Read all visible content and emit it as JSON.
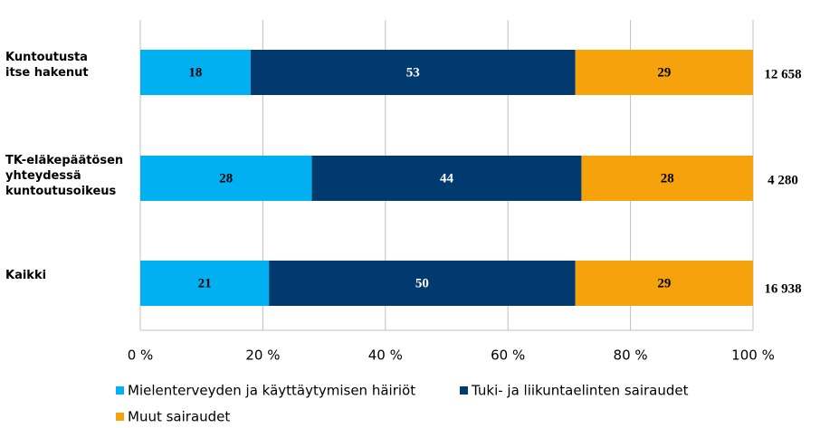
{
  "chart_data": {
    "type": "stacked_barh",
    "categories": [
      "Kuntoutusta\nitse hakenut",
      "TK-eläkepäätösen\nyhteydessä\nkuntoutusoikeus",
      "Kaikki"
    ],
    "series": [
      {
        "name": "Mielenterveyden ja käyttäytymisen häiriöt",
        "color": "#00b0f0",
        "values": [
          18,
          28,
          21
        ]
      },
      {
        "name": "Tuki- ja liikuntaelinten sairaudet",
        "color": "#003a6f",
        "values": [
          53,
          44,
          50
        ]
      },
      {
        "name": "Muut sairaudet",
        "color": "#f5a20c",
        "values": [
          29,
          28,
          29
        ]
      }
    ],
    "totals": [
      {
        "value": 12658,
        "label": "12 658"
      },
      {
        "value": 4280,
        "label": "4 280"
      },
      {
        "value": 16938,
        "label": "16 938"
      }
    ],
    "xlim": [
      0,
      100
    ],
    "xticks": [
      {
        "value": 0,
        "label": "0 %"
      },
      {
        "value": 20,
        "label": "20 %"
      },
      {
        "value": 40,
        "label": "40 %"
      },
      {
        "value": 60,
        "label": "60 %"
      },
      {
        "value": 80,
        "label": "80 %"
      },
      {
        "value": 100,
        "label": "100 %"
      }
    ],
    "grid": true
  }
}
